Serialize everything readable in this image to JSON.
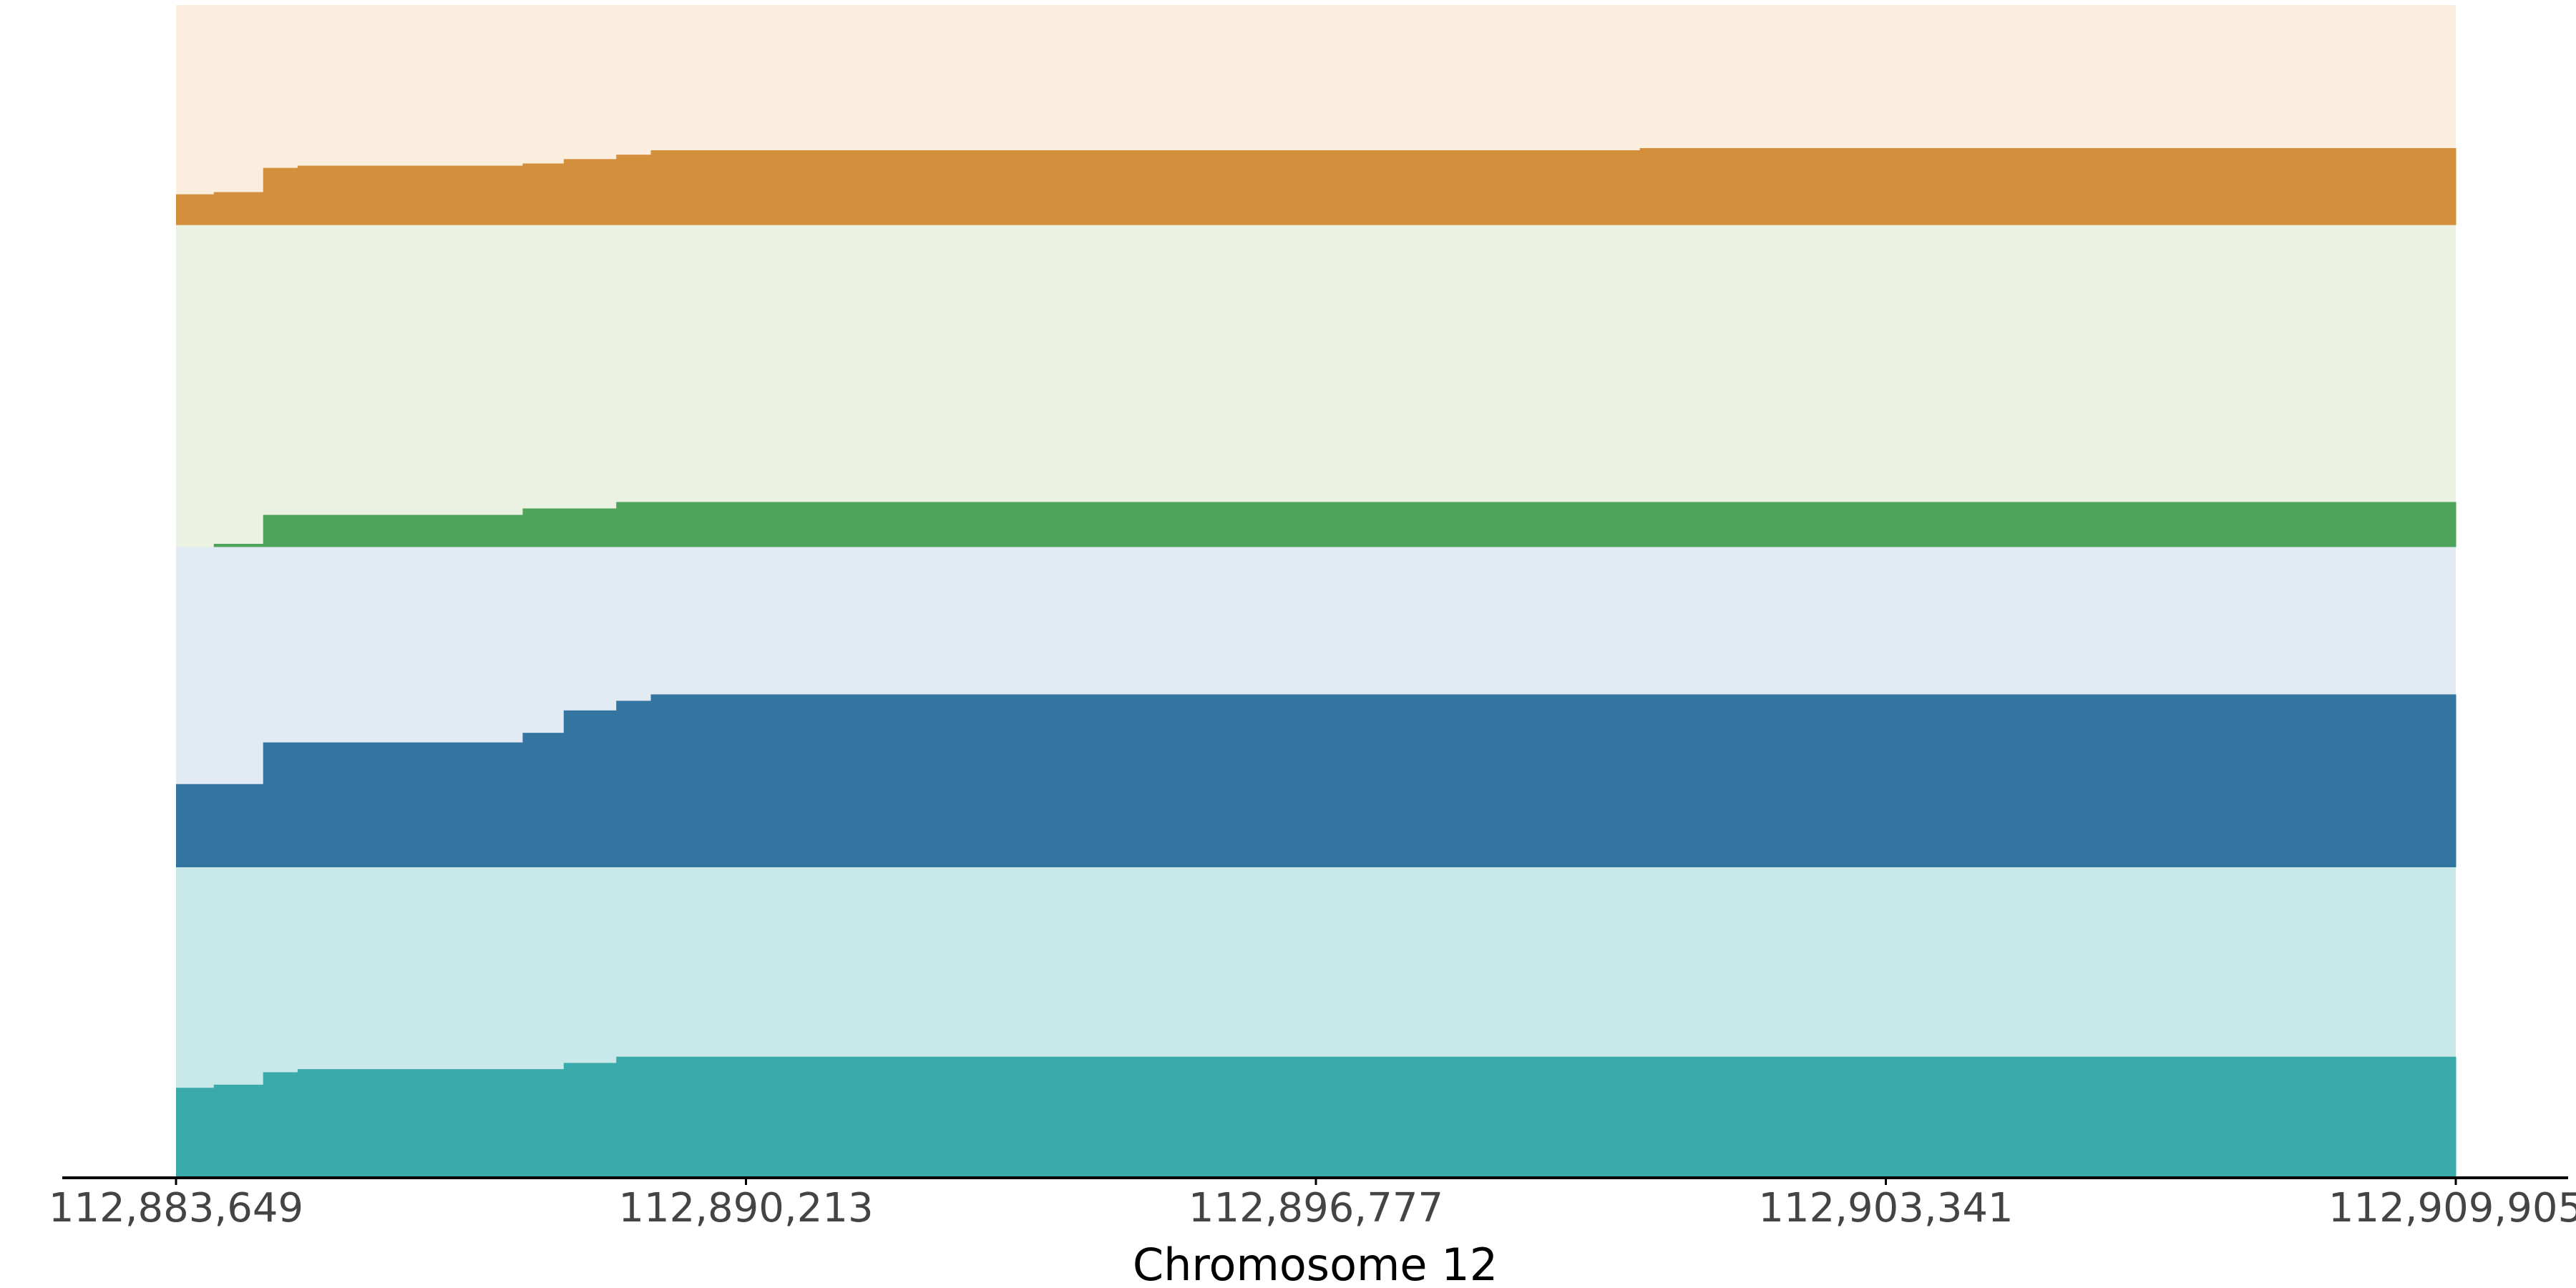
{
  "chart_data": {
    "type": "step",
    "x_label": "Chromosome 12",
    "xlim": [
      112883649,
      112909905
    ],
    "xticks": [
      {
        "value": 112883649,
        "label": "112,883,649"
      },
      {
        "value": 112890213,
        "label": "112,890,213"
      },
      {
        "value": 112896777,
        "label": "112,896,777"
      },
      {
        "value": 112903341,
        "label": "112,903,341"
      },
      {
        "value": 112909905,
        "label": "112,909,905"
      }
    ],
    "ylim": [
      0,
      1
    ],
    "x": [
      112883649,
      112884084,
      112884652,
      112885049,
      112887641,
      112888114,
      112888719,
      112889117,
      112900507
    ],
    "series": [
      {
        "color": "#d38f3b",
        "background": "#fbeede",
        "values": [
          0.14,
          0.15,
          0.26,
          0.27,
          0.28,
          0.3,
          0.32,
          0.34,
          0.35
        ]
      },
      {
        "color": "#4ea45a",
        "background": "#ebf2e1",
        "values": [
          0,
          0.01,
          0.1,
          0.1,
          0.12,
          0.12,
          0.14,
          0.14,
          0.14
        ]
      },
      {
        "color": "#3474a0",
        "background": "#e2eaf3",
        "values": [
          0.26,
          0.26,
          0.39,
          0.39,
          0.42,
          0.49,
          0.52,
          0.54,
          0.54
        ]
      },
      {
        "color": "#3aa9a9",
        "background": "#c8e8e9",
        "values": [
          0.29,
          0.3,
          0.34,
          0.35,
          0.35,
          0.37,
          0.39,
          0.39,
          0.39
        ]
      }
    ]
  }
}
